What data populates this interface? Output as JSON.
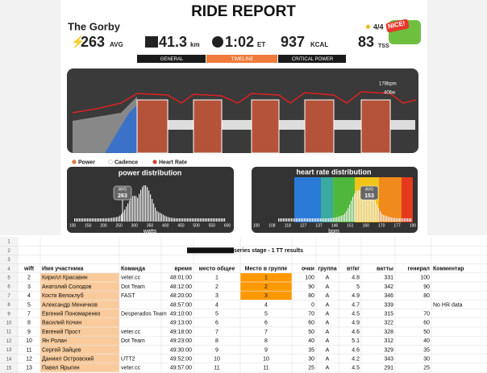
{
  "header": {
    "title": "RIDE REPORT",
    "rider": "The Gorby",
    "stars": "4/4",
    "badge": "NICE!"
  },
  "stats": {
    "power": "263",
    "power_unit": "AVG",
    "distance": "41.3",
    "distance_unit": "km",
    "time": "1:02",
    "time_unit": "ET",
    "calories": "937",
    "calories_unit": "KCAL",
    "tss": "83",
    "tss_unit": "TSS"
  },
  "tabs": [
    "GENERAL",
    "TIMELINE",
    "CRITICAL POWER"
  ],
  "timeline": {
    "max_hr": "178bpm",
    "max_power": "406w"
  },
  "legend": [
    "Power",
    "Cadence",
    "Heart Rate"
  ],
  "power_distribution": {
    "title": "power distribution",
    "ticks": [
      100,
      150,
      200,
      250,
      300,
      350,
      400,
      450,
      500,
      550,
      600
    ],
    "axis_label": "watts",
    "avg_label": "AVG",
    "avg": "263"
  },
  "heart_rate_distribution": {
    "title": "heart rate distribution",
    "ticks": [
      100,
      108,
      118,
      127,
      137,
      146,
      151,
      160,
      170,
      177,
      190
    ],
    "axis_label": "bpm",
    "avg_label": "AVG",
    "avg": "153"
  },
  "sheet": {
    "title": "series stage - 1 TT results",
    "row_numbers": [
      1,
      2,
      3,
      4,
      5,
      6,
      7,
      8,
      9,
      10,
      11,
      12,
      13,
      14,
      15
    ],
    "columns": [
      "wift",
      "Имя участника",
      "Команда",
      "время",
      "место общее",
      "Место в группе",
      "очки",
      "группа",
      "вт/кг",
      "ватты",
      "генерал",
      "Комментар"
    ],
    "rows": [
      [
        2,
        "Кирилл Красавин",
        "veter.cc",
        "48:01:00",
        1,
        1,
        100,
        "A",
        4.8,
        331,
        100,
        null
      ],
      [
        3,
        "Анатолий Солодов",
        "Dot Team",
        "48:12:00",
        2,
        2,
        90,
        "A",
        5,
        342,
        90,
        null
      ],
      [
        4,
        "Костя Велоклуб",
        "FAST",
        "48:20:00",
        3,
        3,
        80,
        "A",
        4.9,
        346,
        80,
        null
      ],
      [
        5,
        "Александр Меничков",
        null,
        "48:57:00",
        4,
        4,
        0,
        "A",
        4.7,
        339,
        null,
        "No HR data"
      ],
      [
        7,
        "Евгений Пономаренко",
        "Desperados Team",
        "49:10:00",
        5,
        5,
        70,
        "A",
        4.5,
        315,
        70,
        null
      ],
      [
        8,
        "Василий Кочин",
        null,
        "49:13:00",
        6,
        6,
        60,
        "A",
        4.9,
        322,
        60,
        null
      ],
      [
        9,
        "Евгений Прост",
        "veter.cc",
        "49:18:00",
        7,
        7,
        50,
        "A",
        4.6,
        328,
        50,
        null
      ],
      [
        10,
        "Ян Ролан",
        "Dot Team",
        "49:23:00",
        8,
        8,
        40,
        "A",
        5.1,
        312,
        40,
        null
      ],
      [
        11,
        "Сергей Зайцев",
        null,
        "49:30:00",
        9,
        9,
        35,
        "A",
        4.6,
        329,
        35,
        null
      ],
      [
        12,
        "Даниил Островский",
        "UTT2",
        "49:52:00",
        10,
        10,
        30,
        "A",
        4.2,
        343,
        30,
        null
      ],
      [
        13,
        "Павел Ярыгин",
        "veter.cc",
        "49:57:00",
        11,
        11,
        25,
        "A",
        4.5,
        291,
        25,
        null
      ]
    ]
  }
}
